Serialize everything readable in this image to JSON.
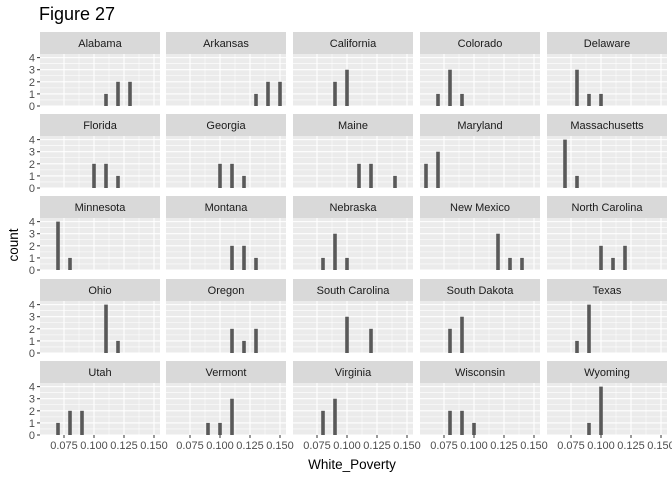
{
  "chart_data": {
    "type": "bar",
    "title": "Figure 27",
    "xlabel": "White_Poverty",
    "ylabel": "count",
    "xlim": [
      0.055,
      0.155
    ],
    "ylim": [
      0,
      4.3
    ],
    "x_ticks": [
      0.075,
      0.1,
      0.125,
      0.15
    ],
    "x_tick_labels": [
      "0.075",
      "0.100",
      "0.125",
      "0.150"
    ],
    "y_ticks": [
      0,
      1,
      2,
      3,
      4
    ],
    "y_tick_labels": [
      "0",
      "1",
      "2",
      "3",
      "4"
    ],
    "panel_bg": "#ebebeb",
    "strip_bg": "#d9d9d9",
    "bar_color": "#595959",
    "panels": [
      {
        "name": "Alabama",
        "bars": [
          {
            "x": 0.11,
            "count": 1
          },
          {
            "x": 0.12,
            "count": 2
          },
          {
            "x": 0.13,
            "count": 2
          }
        ]
      },
      {
        "name": "Arkansas",
        "bars": [
          {
            "x": 0.13,
            "count": 1
          },
          {
            "x": 0.14,
            "count": 2
          },
          {
            "x": 0.15,
            "count": 2
          }
        ]
      },
      {
        "name": "California",
        "bars": [
          {
            "x": 0.09,
            "count": 2
          },
          {
            "x": 0.1,
            "count": 3
          }
        ]
      },
      {
        "name": "Colorado",
        "bars": [
          {
            "x": 0.07,
            "count": 1
          },
          {
            "x": 0.08,
            "count": 3
          },
          {
            "x": 0.09,
            "count": 1
          }
        ]
      },
      {
        "name": "Delaware",
        "bars": [
          {
            "x": 0.08,
            "count": 3
          },
          {
            "x": 0.09,
            "count": 1
          },
          {
            "x": 0.1,
            "count": 1
          }
        ]
      },
      {
        "name": "Florida",
        "bars": [
          {
            "x": 0.1,
            "count": 2
          },
          {
            "x": 0.11,
            "count": 2
          },
          {
            "x": 0.12,
            "count": 1
          }
        ]
      },
      {
        "name": "Georgia",
        "bars": [
          {
            "x": 0.1,
            "count": 2
          },
          {
            "x": 0.11,
            "count": 2
          },
          {
            "x": 0.12,
            "count": 1
          }
        ]
      },
      {
        "name": "Maine",
        "bars": [
          {
            "x": 0.11,
            "count": 2
          },
          {
            "x": 0.12,
            "count": 2
          },
          {
            "x": 0.14,
            "count": 1
          }
        ]
      },
      {
        "name": "Maryland",
        "bars": [
          {
            "x": 0.06,
            "count": 2
          },
          {
            "x": 0.07,
            "count": 3
          }
        ]
      },
      {
        "name": "Massachusetts",
        "bars": [
          {
            "x": 0.07,
            "count": 4
          },
          {
            "x": 0.08,
            "count": 1
          }
        ]
      },
      {
        "name": "Minnesota",
        "bars": [
          {
            "x": 0.07,
            "count": 4
          },
          {
            "x": 0.08,
            "count": 1
          }
        ]
      },
      {
        "name": "Montana",
        "bars": [
          {
            "x": 0.11,
            "count": 2
          },
          {
            "x": 0.12,
            "count": 2
          },
          {
            "x": 0.13,
            "count": 1
          }
        ]
      },
      {
        "name": "Nebraska",
        "bars": [
          {
            "x": 0.08,
            "count": 1
          },
          {
            "x": 0.09,
            "count": 3
          },
          {
            "x": 0.1,
            "count": 1
          }
        ]
      },
      {
        "name": "New Mexico",
        "bars": [
          {
            "x": 0.12,
            "count": 3
          },
          {
            "x": 0.13,
            "count": 1
          },
          {
            "x": 0.14,
            "count": 1
          }
        ]
      },
      {
        "name": "North Carolina",
        "bars": [
          {
            "x": 0.1,
            "count": 2
          },
          {
            "x": 0.11,
            "count": 1
          },
          {
            "x": 0.12,
            "count": 2
          }
        ]
      },
      {
        "name": "Ohio",
        "bars": [
          {
            "x": 0.11,
            "count": 4
          },
          {
            "x": 0.12,
            "count": 1
          }
        ]
      },
      {
        "name": "Oregon",
        "bars": [
          {
            "x": 0.11,
            "count": 2
          },
          {
            "x": 0.12,
            "count": 1
          },
          {
            "x": 0.13,
            "count": 2
          }
        ]
      },
      {
        "name": "South Carolina",
        "bars": [
          {
            "x": 0.1,
            "count": 3
          },
          {
            "x": 0.12,
            "count": 2
          }
        ]
      },
      {
        "name": "South Dakota",
        "bars": [
          {
            "x": 0.08,
            "count": 2
          },
          {
            "x": 0.09,
            "count": 3
          }
        ]
      },
      {
        "name": "Texas",
        "bars": [
          {
            "x": 0.08,
            "count": 1
          },
          {
            "x": 0.09,
            "count": 4
          }
        ]
      },
      {
        "name": "Utah",
        "bars": [
          {
            "x": 0.07,
            "count": 1
          },
          {
            "x": 0.08,
            "count": 2
          },
          {
            "x": 0.09,
            "count": 2
          }
        ]
      },
      {
        "name": "Vermont",
        "bars": [
          {
            "x": 0.09,
            "count": 1
          },
          {
            "x": 0.1,
            "count": 1
          },
          {
            "x": 0.11,
            "count": 3
          }
        ]
      },
      {
        "name": "Virginia",
        "bars": [
          {
            "x": 0.08,
            "count": 2
          },
          {
            "x": 0.09,
            "count": 3
          }
        ]
      },
      {
        "name": "Wisconsin",
        "bars": [
          {
            "x": 0.08,
            "count": 2
          },
          {
            "x": 0.09,
            "count": 2
          },
          {
            "x": 0.1,
            "count": 1
          }
        ]
      },
      {
        "name": "Wyoming",
        "bars": [
          {
            "x": 0.09,
            "count": 1
          },
          {
            "x": 0.1,
            "count": 4
          }
        ]
      }
    ]
  }
}
